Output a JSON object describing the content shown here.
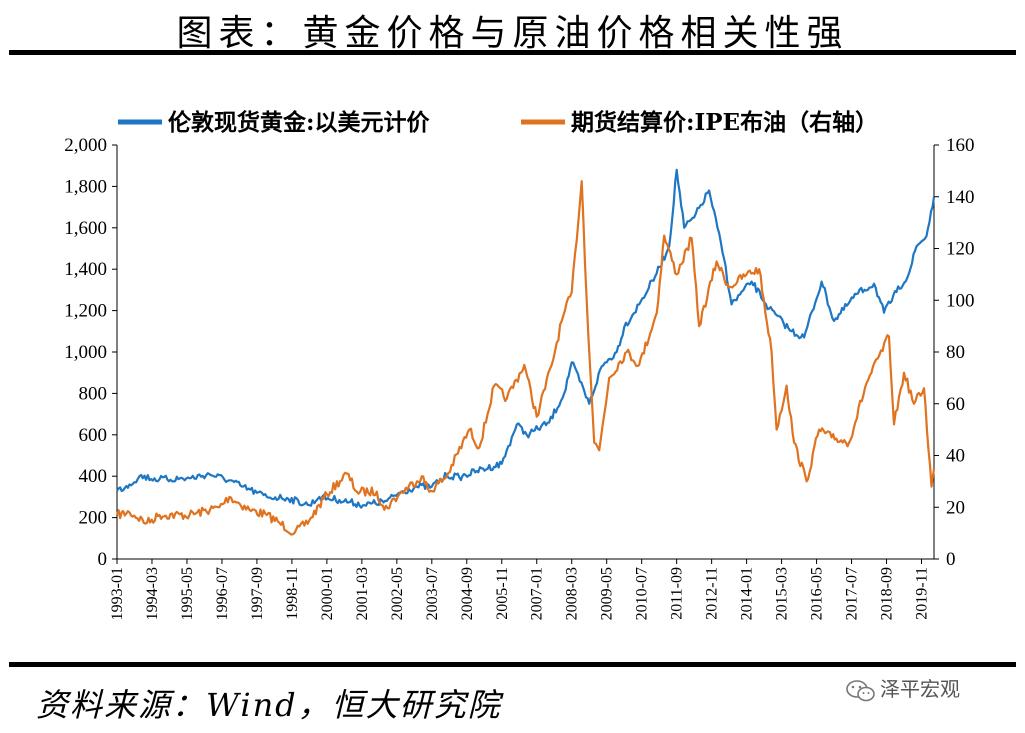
{
  "header": {
    "title": "图表：黄金价格与原油价格相关性强"
  },
  "footer": {
    "source": "资料来源：Wind，恒大研究院",
    "watermark": "泽平宏观"
  },
  "colors": {
    "gold": "#1f77c4",
    "oil": "#e07320"
  },
  "chart_data": {
    "type": "line",
    "title": "",
    "legend": [
      "伦敦现货黄金:以美元计价",
      "期货结算价:IPE布油（右轴）"
    ],
    "legend_position": "top",
    "grid": false,
    "y_left": {
      "ticks": [
        "0",
        "200",
        "400",
        "600",
        "800",
        "1,000",
        "1,200",
        "1,400",
        "1,600",
        "1,800",
        "2,000"
      ],
      "ylim": [
        0,
        2000
      ]
    },
    "y_right": {
      "ticks": [
        "0",
        "20",
        "40",
        "60",
        "80",
        "100",
        "120",
        "140",
        "160"
      ],
      "ylim": [
        0,
        160
      ]
    },
    "x_ticks": [
      "1993-01",
      "1994-03",
      "1995-05",
      "1996-07",
      "1997-09",
      "1998-11",
      "2000-01",
      "2001-03",
      "2002-05",
      "2003-07",
      "2004-09",
      "2005-11",
      "2007-01",
      "2008-03",
      "2009-05",
      "2010-07",
      "2011-09",
      "2012-11",
      "2014-01",
      "2015-03",
      "2016-05",
      "2017-07",
      "2018-09",
      "2019-11"
    ],
    "xlim": [
      "1993-01",
      "2020-04"
    ],
    "series": [
      {
        "name": "伦敦现货黄金:以美元计价",
        "axis": "left",
        "x": [
          "1993-01",
          "1993-06",
          "1993-10",
          "1994-06",
          "1995-06",
          "1996-02",
          "1996-10",
          "1997-03",
          "1997-09",
          "1998-01",
          "1998-09",
          "1999-06",
          "1999-10",
          "2000-06",
          "2001-04",
          "2002-01",
          "2002-06",
          "2003-01",
          "2003-07",
          "2004-01",
          "2004-06",
          "2005-01",
          "2005-11",
          "2006-05",
          "2006-09",
          "2007-06",
          "2007-12",
          "2008-03",
          "2008-10",
          "2009-03",
          "2009-09",
          "2009-12",
          "2010-06",
          "2011-01",
          "2011-06",
          "2011-09",
          "2011-12",
          "2012-04",
          "2012-10",
          "2013-04",
          "2013-07",
          "2014-03",
          "2014-10",
          "2015-07",
          "2015-12",
          "2016-07",
          "2016-12",
          "2017-09",
          "2018-04",
          "2018-08",
          "2019-01",
          "2019-06",
          "2019-09",
          "2020-01",
          "2020-04"
        ],
        "y": [
          330,
          360,
          400,
          385,
          390,
          410,
          380,
          350,
          320,
          300,
          295,
          260,
          300,
          285,
          260,
          280,
          320,
          350,
          350,
          405,
          395,
          425,
          460,
          650,
          600,
          660,
          800,
          950,
          750,
          930,
          1000,
          1120,
          1230,
          1380,
          1510,
          1880,
          1600,
          1650,
          1780,
          1450,
          1230,
          1340,
          1210,
          1100,
          1070,
          1340,
          1150,
          1280,
          1330,
          1190,
          1290,
          1380,
          1510,
          1560,
          1750
        ]
      },
      {
        "name": "期货结算价:IPE布油（右轴）",
        "axis": "right",
        "x": [
          "1993-01",
          "1993-06",
          "1994-01",
          "1994-06",
          "1995-06",
          "1996-06",
          "1996-10",
          "1997-06",
          "1998-01",
          "1998-06",
          "1998-12",
          "1999-06",
          "2000-01",
          "2000-09",
          "2001-01",
          "2001-09",
          "2001-12",
          "2002-06",
          "2003-03",
          "2003-06",
          "2004-01",
          "2004-10",
          "2005-02",
          "2005-08",
          "2006-01",
          "2006-08",
          "2007-01",
          "2007-07",
          "2007-11",
          "2008-03",
          "2008-07",
          "2008-09",
          "2008-12",
          "2009-02",
          "2009-06",
          "2010-01",
          "2010-06",
          "2011-01",
          "2011-04",
          "2011-09",
          "2012-03",
          "2012-06",
          "2013-01",
          "2013-06",
          "2014-01",
          "2014-06",
          "2014-11",
          "2015-01",
          "2015-05",
          "2015-08",
          "2016-01",
          "2016-06",
          "2016-11",
          "2017-06",
          "2018-01",
          "2018-10",
          "2018-12",
          "2019-04",
          "2019-08",
          "2019-12",
          "2020-03",
          "2020-04"
        ],
        "y": [
          17,
          18,
          14,
          17,
          17,
          20,
          24,
          19,
          17,
          14,
          10,
          15,
          25,
          33,
          26,
          26,
          19,
          25,
          32,
          26,
          32,
          50,
          43,
          67,
          62,
          75,
          55,
          75,
          92,
          103,
          146,
          100,
          45,
          42,
          70,
          80,
          75,
          95,
          125,
          110,
          124,
          90,
          115,
          105,
          110,
          112,
          80,
          50,
          67,
          45,
          30,
          50,
          47,
          45,
          68,
          86,
          52,
          72,
          60,
          66,
          28,
          35
        ]
      }
    ]
  }
}
